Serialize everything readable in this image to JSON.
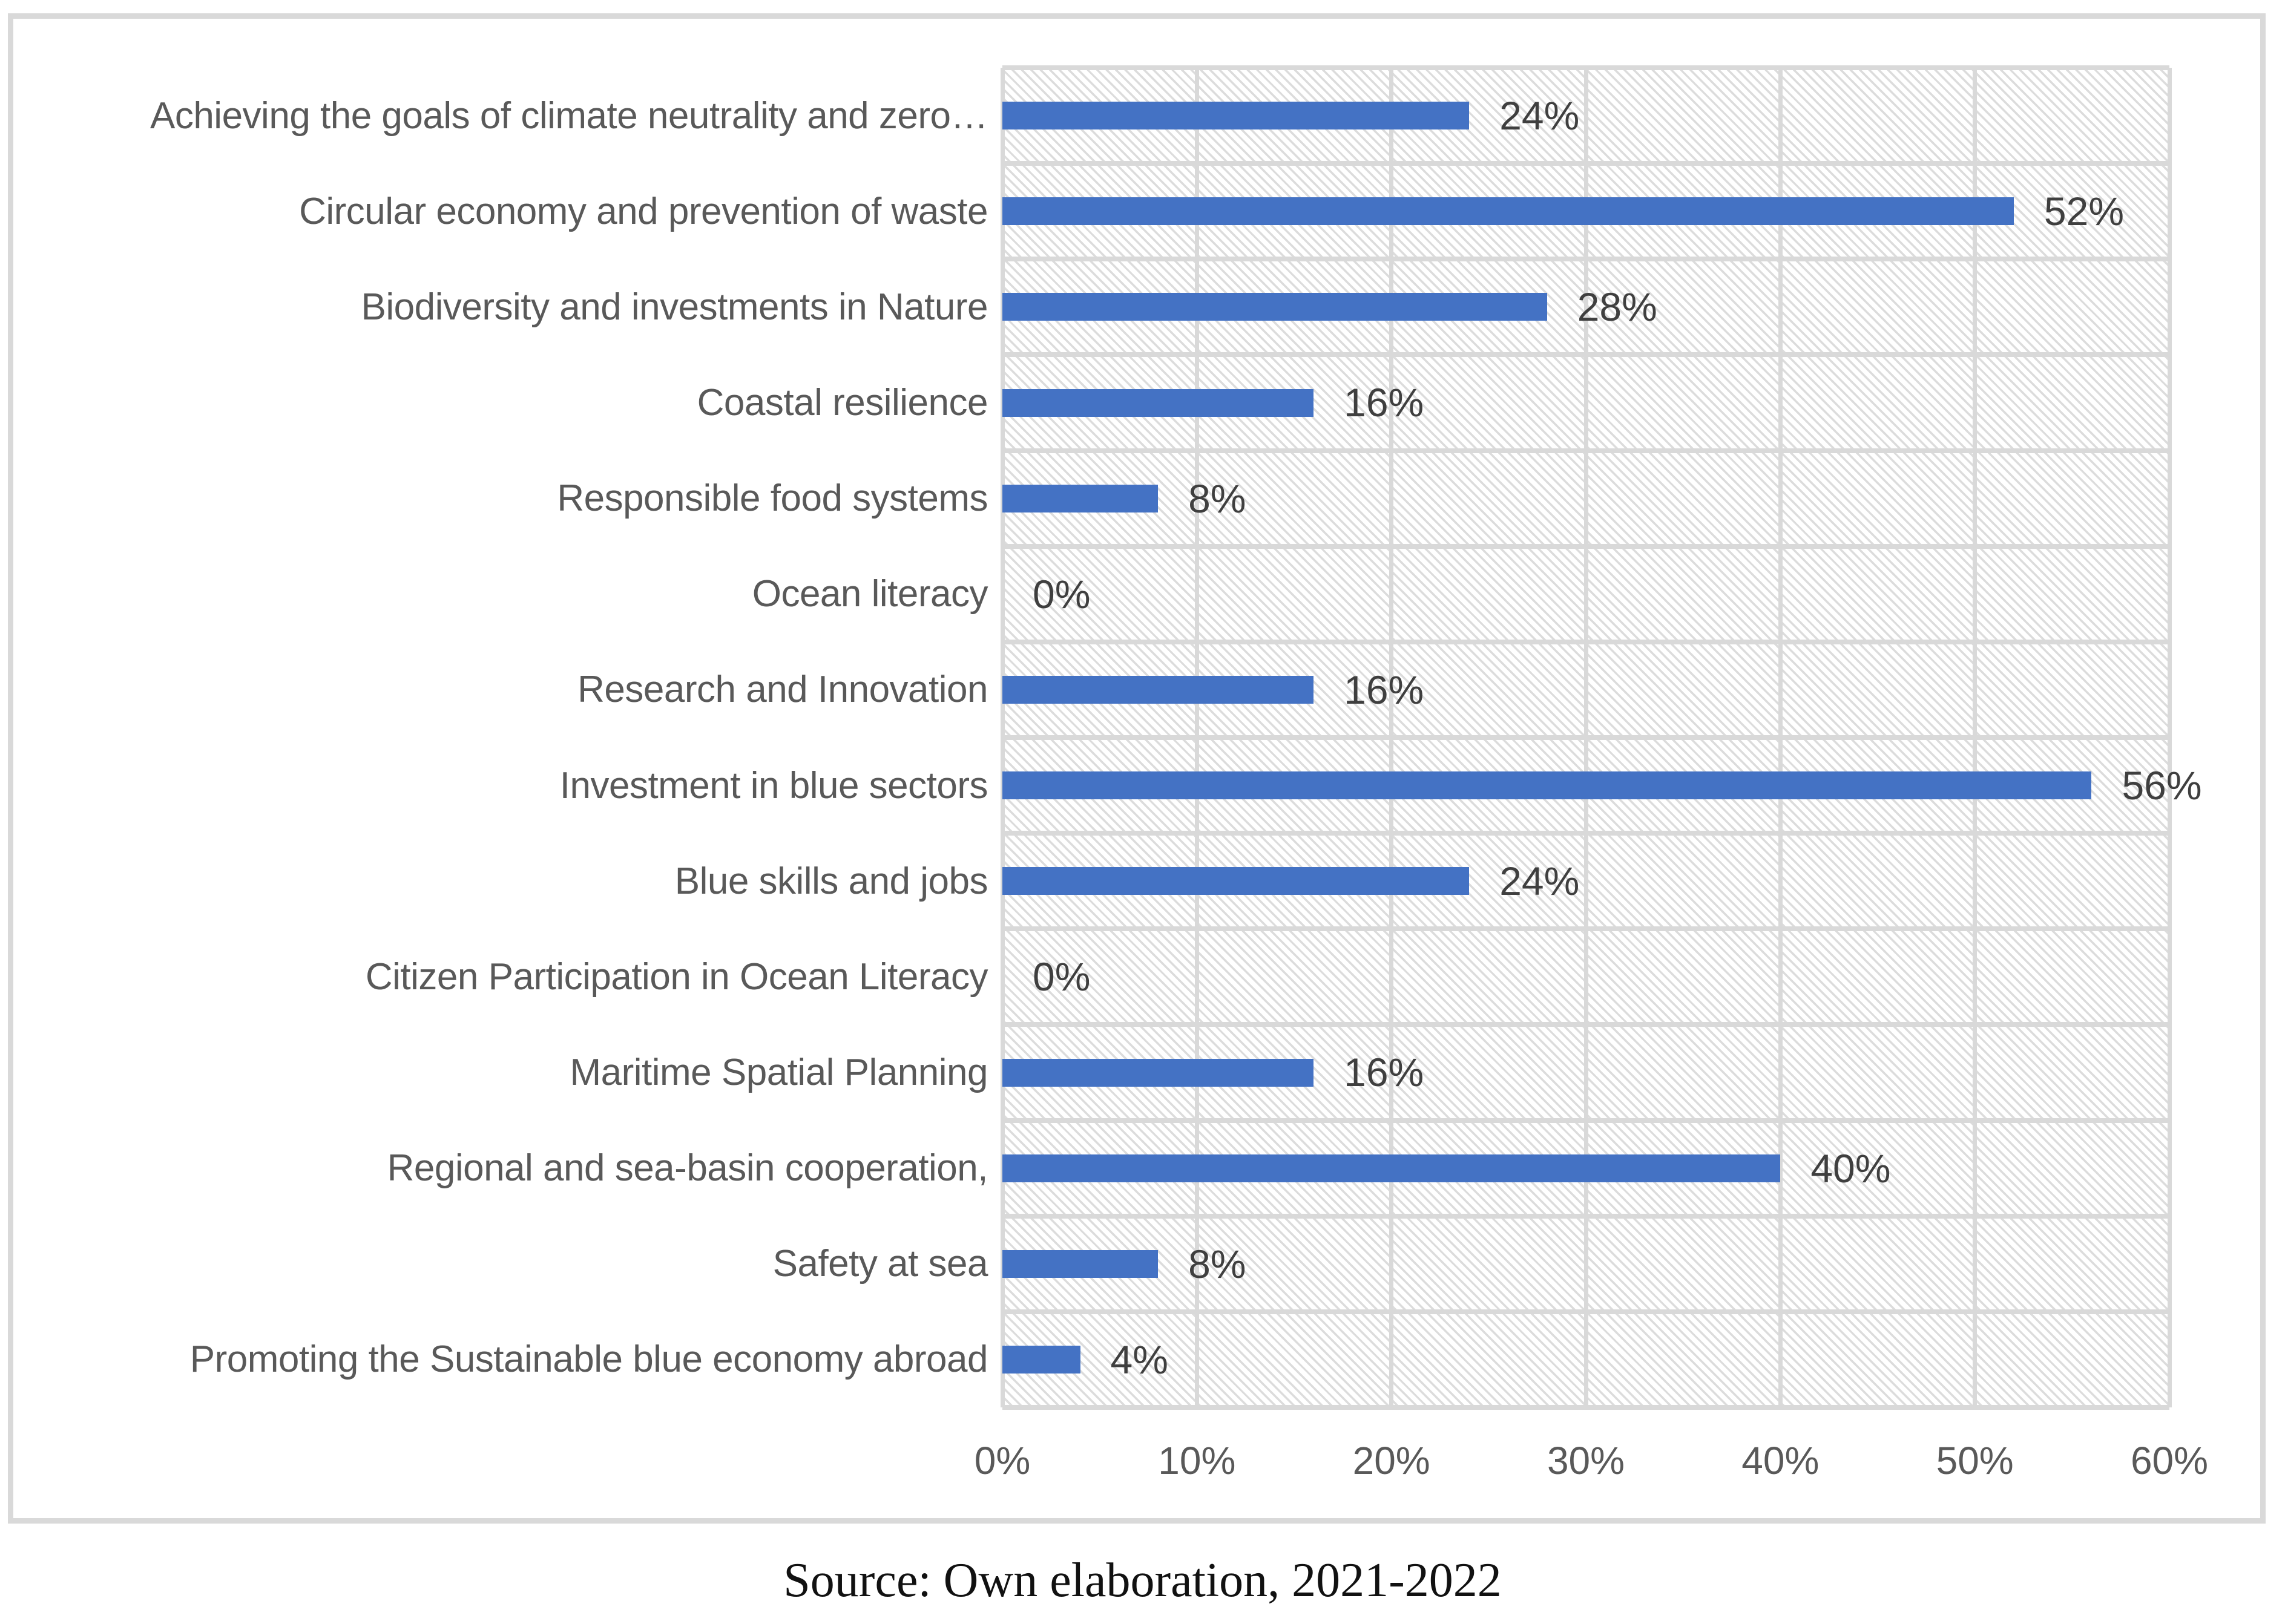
{
  "figure": {
    "caption": "Source: Own elaboration, 2021-2022"
  },
  "chart_data": {
    "type": "bar",
    "orientation": "horizontal",
    "title": "",
    "xlabel": "",
    "ylabel": "",
    "xlim": [
      0,
      60
    ],
    "x_tick_labels": [
      "0%",
      "10%",
      "20%",
      "30%",
      "40%",
      "50%",
      "60%"
    ],
    "grid": true,
    "legend_position": "none",
    "plot_background": "light diagonal hatch pattern",
    "categories": [
      "Achieving the goals of climate neutrality and zero…",
      "Circular economy and prevention of waste",
      "Biodiversity and investments in Nature",
      "Coastal resilience",
      "Responsible food systems",
      "Ocean literacy",
      "Research and Innovation",
      "Investment in blue sectors",
      "Blue skills and jobs",
      "Citizen Participation in Ocean Literacy",
      "Maritime Spatial Planning",
      "Regional and sea-basin cooperation,",
      "Safety at sea",
      "Promoting the Sustainable blue economy abroad"
    ],
    "values": [
      24,
      52,
      28,
      16,
      8,
      0,
      16,
      56,
      24,
      0,
      16,
      40,
      8,
      4
    ],
    "data_labels": [
      "24%",
      "52%",
      "28%",
      "16%",
      "8%",
      "0%",
      "16%",
      "56%",
      "24%",
      "0%",
      "16%",
      "40%",
      "8%",
      "4%"
    ],
    "colors": {
      "bar": "#4472C4",
      "gridline": "#D9D9D9",
      "hatch_line": "#DCDCDC",
      "category_label": "#595959",
      "tick_label": "#595959",
      "data_label": "#3F3F3F",
      "border": "#D9D9D9",
      "caption_text": "#111111"
    }
  }
}
